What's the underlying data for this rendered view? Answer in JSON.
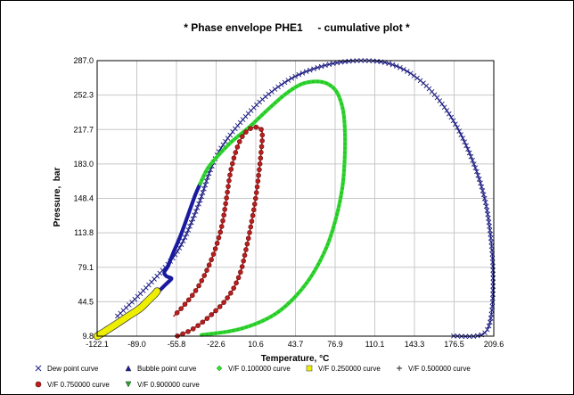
{
  "chart_data": {
    "type": "line",
    "title": "* Phase envelope PHE1     - cumulative plot *",
    "xlabel": "Temperature, °C",
    "ylabel": "Pressure,  bar",
    "xlim": [
      -122.1,
      209.6
    ],
    "ylim": [
      9.8,
      287.0
    ],
    "x_ticks": [
      "-122.1",
      "-89.0",
      "-55.8",
      "-22.6",
      "10.6",
      "43.7",
      "76.9",
      "110.1",
      "143.3",
      "176.5",
      "209.6"
    ],
    "y_ticks": [
      "9.8",
      "44.5",
      "79.1",
      "113.8",
      "148.4",
      "183.0",
      "217.7",
      "252.3",
      "287.0"
    ],
    "grid": true,
    "legend_position": "bottom",
    "series": [
      {
        "name": "Dew point curve",
        "color": "#1a1a80",
        "marker": "x",
        "points": [
          [
            -105,
            30
          ],
          [
            -80,
            60
          ],
          [
            -55,
            95
          ],
          [
            -38,
            140
          ],
          [
            -28,
            175
          ],
          [
            -18,
            200
          ],
          [
            0,
            228
          ],
          [
            20,
            252
          ],
          [
            45,
            272
          ],
          [
            75,
            284
          ],
          [
            103,
            287
          ],
          [
            125,
            283
          ],
          [
            145,
            270
          ],
          [
            162,
            250
          ],
          [
            178,
            222
          ],
          [
            192,
            186
          ],
          [
            202,
            148
          ],
          [
            207,
            110
          ],
          [
            209,
            72
          ],
          [
            208,
            36
          ],
          [
            204,
            16
          ],
          [
            195,
            10
          ],
          [
            175,
            10
          ]
        ]
      },
      {
        "name": "Bubble point curve",
        "color": "#1a1aa0",
        "marker": "triangle",
        "points": [
          [
            -122,
            10
          ],
          [
            -110,
            18
          ],
          [
            -98,
            27
          ],
          [
            -86,
            37
          ],
          [
            -76,
            48
          ],
          [
            -68,
            58
          ],
          [
            -62,
            65
          ],
          [
            -60,
            68
          ],
          [
            -64,
            70
          ],
          [
            -66,
            74
          ],
          [
            -63,
            80
          ],
          [
            -58,
            95
          ],
          [
            -52,
            112
          ],
          [
            -46,
            132
          ],
          [
            -40,
            152
          ],
          [
            -36,
            163
          ]
        ]
      },
      {
        "name": "V/F 0.100000 curve",
        "color": "#33dd33",
        "marker": "diamond",
        "points": [
          [
            -36,
            163
          ],
          [
            -30,
            178
          ],
          [
            -22,
            190
          ],
          [
            -10,
            205
          ],
          [
            5,
            220
          ],
          [
            20,
            237
          ],
          [
            35,
            253
          ],
          [
            48,
            263
          ],
          [
            60,
            266
          ],
          [
            70,
            264
          ],
          [
            78,
            256
          ],
          [
            83,
            240
          ],
          [
            85,
            220
          ],
          [
            85,
            190
          ],
          [
            83,
            160
          ],
          [
            78,
            130
          ],
          [
            70,
            100
          ],
          [
            58,
            72
          ],
          [
            44,
            50
          ],
          [
            28,
            33
          ],
          [
            10,
            22
          ],
          [
            -10,
            15
          ],
          [
            -35,
            11
          ]
        ]
      },
      {
        "name": "V/F 0.250000 curve",
        "color": "#eeee00",
        "marker": "square",
        "points": [
          [
            -122,
            9.8
          ],
          [
            -115,
            15
          ],
          [
            -106,
            22
          ],
          [
            -96,
            30
          ],
          [
            -86,
            38
          ],
          [
            -80,
            45
          ],
          [
            -74,
            52
          ],
          [
            -72,
            55
          ]
        ]
      },
      {
        "name": "V/F 0.500000 curve",
        "color": "#222222",
        "marker": "plus",
        "points": []
      },
      {
        "name": "V/F 0.750000 curve",
        "color": "#b82020",
        "marker": "circle",
        "points": [
          [
            -55,
            10
          ],
          [
            -45,
            15
          ],
          [
            -36,
            22
          ],
          [
            -26,
            32
          ],
          [
            -16,
            44
          ],
          [
            -8,
            58
          ],
          [
            -2,
            75
          ],
          [
            2,
            95
          ],
          [
            6,
            118
          ],
          [
            10,
            145
          ],
          [
            13,
            172
          ],
          [
            15,
            195
          ],
          [
            16,
            210
          ],
          [
            15,
            218
          ],
          [
            10,
            220
          ],
          [
            4,
            217
          ],
          [
            -2,
            208
          ],
          [
            -7,
            192
          ],
          [
            -11,
            172
          ],
          [
            -14,
            148
          ],
          [
            -18,
            120
          ],
          [
            -24,
            95
          ],
          [
            -32,
            72
          ],
          [
            -40,
            55
          ],
          [
            -50,
            40
          ],
          [
            -58,
            30
          ]
        ]
      },
      {
        "name": "V/F 0.900000 curve",
        "color": "#22aa22",
        "marker": "triangle-down",
        "points": []
      }
    ]
  }
}
